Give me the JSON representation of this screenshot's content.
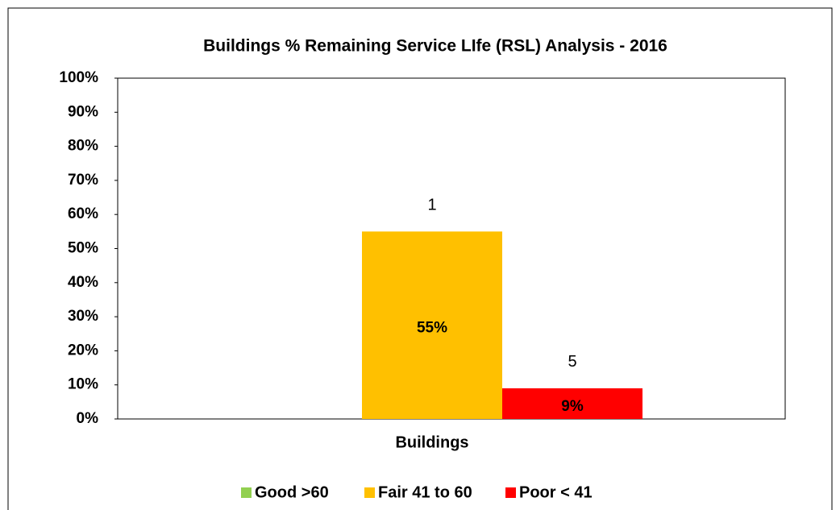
{
  "chart_data": {
    "type": "bar",
    "title": "Buildings % Remaining Service LIfe (RSL) Analysis - 2016",
    "categories": [
      "Buildings"
    ],
    "series": [
      {
        "name": "Good >60",
        "color": "#92d050",
        "values": [
          0
        ]
      },
      {
        "name": "Fair 41 to 60",
        "color": "#ffc000",
        "values": [
          55
        ],
        "value_labels": [
          "55%"
        ],
        "top_labels": [
          "1"
        ]
      },
      {
        "name": "Poor < 41",
        "color": "#ff0000",
        "values": [
          9
        ],
        "value_labels": [
          "9%"
        ],
        "top_labels": [
          "5"
        ]
      }
    ],
    "ylim": [
      0,
      100
    ],
    "yticks": [
      {
        "value": 0,
        "label": "0%"
      },
      {
        "value": 10,
        "label": "10%"
      },
      {
        "value": 20,
        "label": "20%"
      },
      {
        "value": 30,
        "label": "30%"
      },
      {
        "value": 40,
        "label": "40%"
      },
      {
        "value": 50,
        "label": "50%"
      },
      {
        "value": 60,
        "label": "60%"
      },
      {
        "value": 70,
        "label": "70%"
      },
      {
        "value": 80,
        "label": "80%"
      },
      {
        "value": 90,
        "label": "90%"
      },
      {
        "value": 100,
        "label": "100%"
      }
    ],
    "grid": false,
    "legend": "bottom"
  }
}
